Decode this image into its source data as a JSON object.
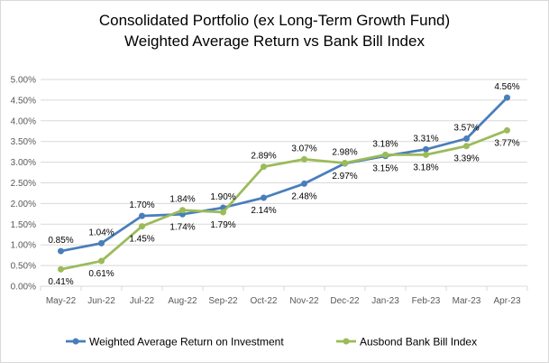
{
  "chart_data": {
    "type": "line",
    "title_line1": "Consolidated Portfolio (ex Long-Term Growth Fund)",
    "title_line2": "Weighted Average Return vs Bank Bill Index",
    "categories": [
      "May-22",
      "Jun-22",
      "Jul-22",
      "Aug-22",
      "Sep-22",
      "Oct-22",
      "Nov-22",
      "Dec-22",
      "Jan-23",
      "Feb-23",
      "Mar-23",
      "Apr-23"
    ],
    "ylim": [
      0,
      5
    ],
    "yticks": [
      "0.00%",
      "0.50%",
      "1.00%",
      "1.50%",
      "2.00%",
      "2.50%",
      "3.00%",
      "3.50%",
      "4.00%",
      "4.50%",
      "5.00%"
    ],
    "grid": true,
    "legend_position": "bottom",
    "series": [
      {
        "name": "Weighted Average Return on Investment",
        "color": "#4a7ebb",
        "values": [
          0.85,
          1.04,
          1.7,
          1.74,
          1.9,
          2.14,
          2.48,
          2.97,
          3.15,
          3.31,
          3.57,
          4.56
        ],
        "labels": [
          "0.85%",
          "1.04%",
          "1.70%",
          "1.74%",
          "1.90%",
          "2.14%",
          "2.48%",
          "2.97%",
          "3.15%",
          "3.31%",
          "3.57%",
          "4.56%"
        ]
      },
      {
        "name": "Ausbond Bank Bill Index",
        "color": "#9bbb59",
        "values": [
          0.41,
          0.61,
          1.45,
          1.84,
          1.79,
          2.89,
          3.07,
          2.98,
          3.18,
          3.18,
          3.39,
          3.77
        ],
        "labels": [
          "0.41%",
          "0.61%",
          "1.45%",
          "1.84%",
          "1.79%",
          "2.89%",
          "3.07%",
          "2.98%",
          "3.18%",
          "3.18%",
          "3.39%",
          "3.77%"
        ]
      }
    ]
  }
}
